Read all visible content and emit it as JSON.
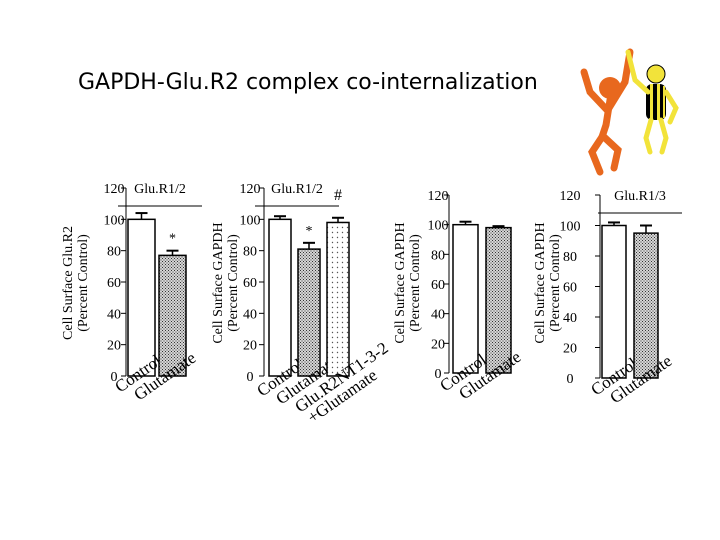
{
  "slide": {
    "title": "GAPDH-Glu.R2 complex co-internalization"
  },
  "colors": {
    "ink": "#000000",
    "hatch_fill": "#d6d6d6",
    "figure_orange": "#e8681e",
    "figure_yellow": "#f2e33a"
  },
  "chart_data": [
    {
      "type": "bar",
      "title": "Glu.R1/2",
      "ylabel": "Cell Surface Glu.R2 (Percent Control)",
      "ylim": [
        0,
        120
      ],
      "yticks": [
        0,
        20,
        40,
        60,
        80,
        100,
        120
      ],
      "categories": [
        "Control",
        "Glutamate"
      ],
      "values": [
        100,
        77
      ],
      "errors": [
        4,
        3
      ],
      "fills": [
        "open",
        "hatched"
      ],
      "annotations": [
        "",
        "*"
      ]
    },
    {
      "type": "bar",
      "title": "Glu.R1/2",
      "ylabel": "Cell Surface GAPDH (Percent Control)",
      "ylim": [
        0,
        120
      ],
      "yticks": [
        0,
        20,
        40,
        60,
        80,
        100,
        120
      ],
      "categories": [
        "Control",
        "Glutamate",
        "Glu.R2NT1-3-2 +Glutamate"
      ],
      "values": [
        100,
        81,
        98
      ],
      "errors": [
        2,
        4,
        3
      ],
      "fills": [
        "open",
        "hatched",
        "dotted"
      ],
      "annotations": [
        "",
        "*",
        "#"
      ]
    },
    {
      "type": "bar",
      "title": "",
      "ylabel": "Cell Surface GAPDH (Percent Control)",
      "ylim": [
        0,
        120
      ],
      "yticks": [
        0,
        20,
        40,
        60,
        80,
        100,
        120
      ],
      "categories": [
        "Control",
        "Glutamate"
      ],
      "values": [
        100,
        98
      ],
      "errors": [
        2,
        1
      ],
      "fills": [
        "open",
        "hatched"
      ],
      "annotations": [
        "",
        ""
      ]
    },
    {
      "type": "bar",
      "title": "Glu.R1/3",
      "ylabel": "Cell Surface GAPDH (Percent Control)",
      "ylim": [
        0,
        120
      ],
      "yticks": [
        0,
        20,
        40,
        60,
        80,
        100,
        120
      ],
      "categories": [
        "Control",
        "Glutamate"
      ],
      "values": [
        100,
        95
      ],
      "errors": [
        2,
        5
      ],
      "fills": [
        "open",
        "hatched"
      ],
      "annotations": [
        "",
        ""
      ]
    }
  ]
}
